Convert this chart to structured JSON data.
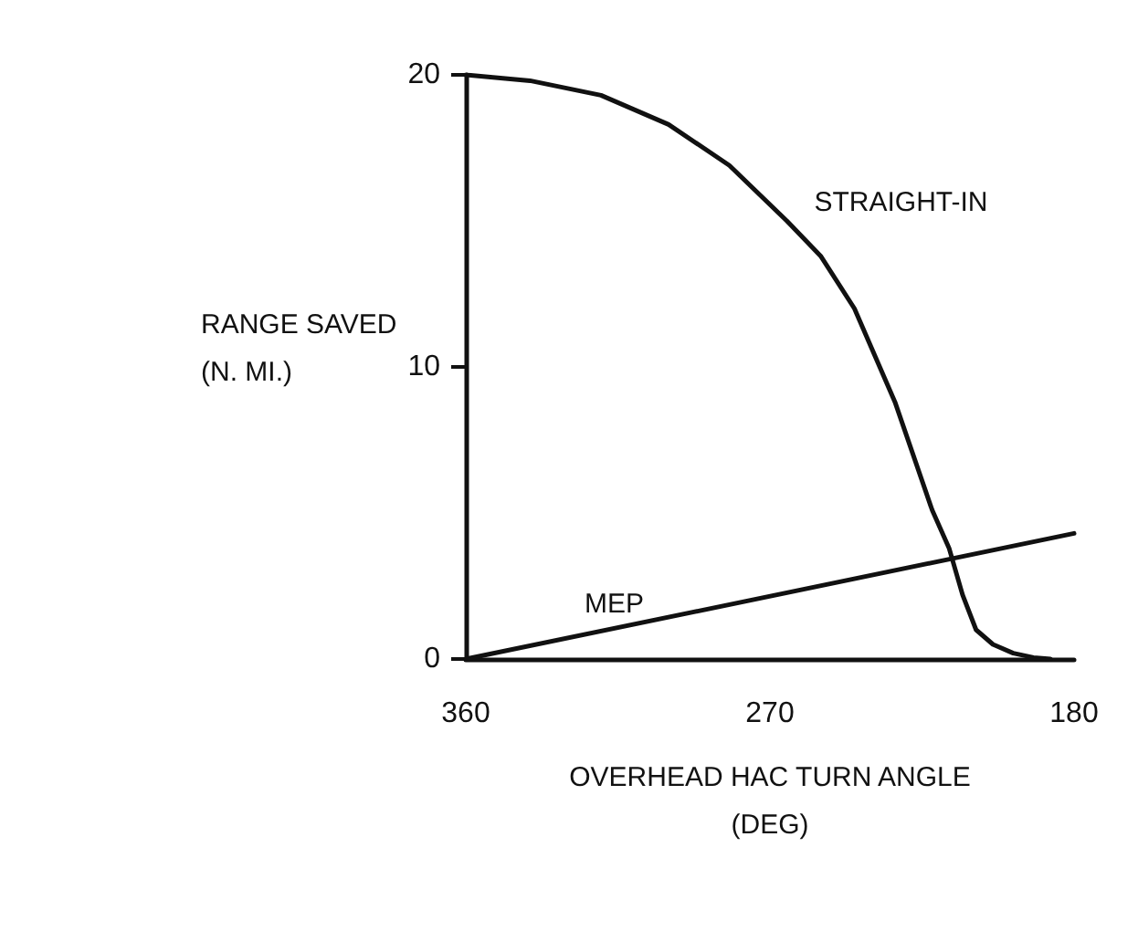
{
  "chart_data": {
    "type": "line",
    "xlabel": "OVERHEAD HAC TURN ANGLE\n(DEG)",
    "ylabel": "RANGE SAVED\n(N. MI.)",
    "xlim": [
      360,
      180
    ],
    "xticks": [
      360,
      270,
      180
    ],
    "ylim": [
      0,
      20
    ],
    "yticks": [
      0,
      10,
      20
    ],
    "grid": false,
    "legend": false,
    "marker": "none",
    "line_style": "solid",
    "series": [
      {
        "name": "STRAIGHT-IN",
        "color": "#111111",
        "x": [
          360,
          341,
          320,
          300,
          282,
          265,
          255,
          245,
          233,
          222,
          217,
          213,
          209,
          204,
          198,
          192,
          187
        ],
        "values": [
          20,
          19.8,
          19.3,
          18.3,
          16.9,
          15.0,
          13.8,
          12,
          8.8,
          5.1,
          3.8,
          2.2,
          1.0,
          0.5,
          0.2,
          0.05,
          0
        ]
      },
      {
        "name": "MEP",
        "color": "#111111",
        "x": [
          360,
          180
        ],
        "values": [
          0,
          4.3
        ]
      }
    ]
  }
}
